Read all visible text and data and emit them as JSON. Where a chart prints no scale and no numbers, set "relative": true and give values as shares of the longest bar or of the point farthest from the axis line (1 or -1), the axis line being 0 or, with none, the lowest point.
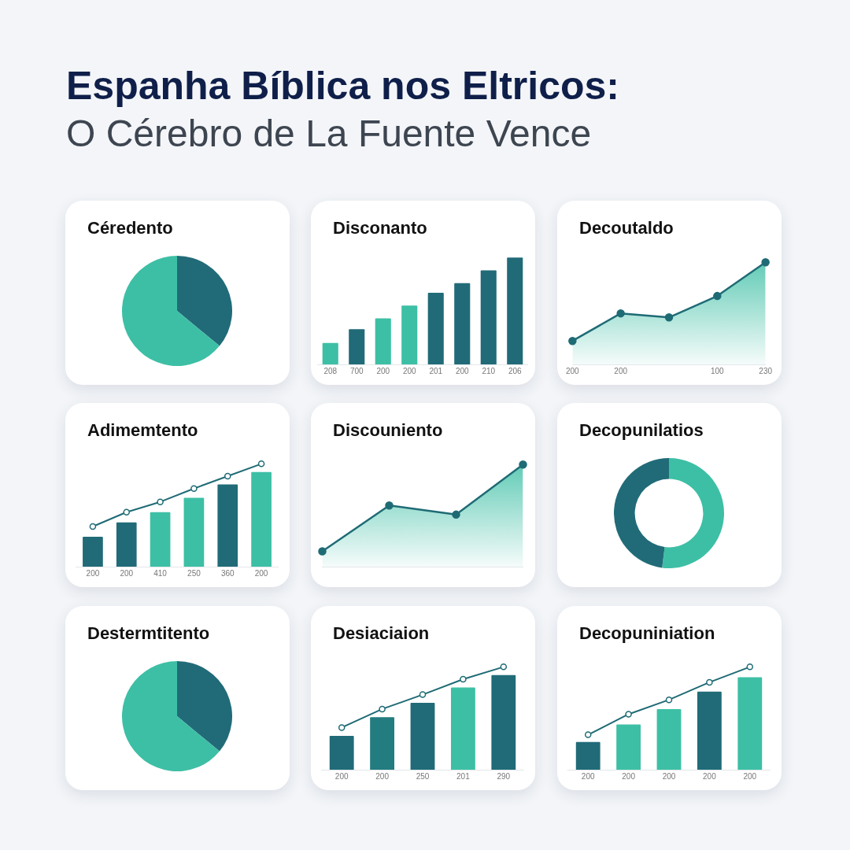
{
  "chart_data": [
    {
      "type": "other",
      "title": "Espanha Bíblica nos Eltricos:",
      "subtitle": "O Cérebro de La Fuente Vence"
    },
    {
      "type": "pie",
      "title": "Céredento",
      "categories": [
        null,
        null
      ],
      "values": [
        36,
        64
      ],
      "colors": [
        "#216b78",
        "#3dbfa5"
      ]
    },
    {
      "type": "bar",
      "title": "Disconanto",
      "relative": true,
      "categories": [
        "208",
        "700",
        "200",
        "200",
        "201",
        "200",
        "210",
        "206"
      ],
      "series": [
        {
          "colors": [
            "#3dbfa5",
            "#216b78",
            "#3dbfa5",
            "#3dbfa5",
            "#216b78",
            "#216b78",
            "#216b78",
            "#216b78"
          ],
          "values": [
            0.2,
            0.33,
            0.43,
            0.55,
            0.67,
            0.76,
            0.88,
            1
          ]
        }
      ],
      "legend": false
    },
    {
      "type": "area",
      "title": "Decoutaldo",
      "relative": true,
      "categories": [
        "200",
        "200",
        null,
        "100",
        "230"
      ],
      "series": [
        {
          "color": "#1f6b75",
          "values": [
            0.23,
            0.5,
            0.46,
            0.67,
            1
          ]
        }
      ],
      "legend": false,
      "marker": "circle"
    },
    {
      "type": "bar",
      "title": "Adimemtento",
      "relative": true,
      "categories": [
        "200",
        "200",
        "410",
        "250",
        "360",
        "200"
      ],
      "series": [
        {
          "type": "bar",
          "colors": [
            "#216b78",
            "#216b78",
            "#3dbfa5",
            "#3dbfa5",
            "#216b78",
            "#3dbfa5"
          ],
          "values": [
            0.29,
            0.43,
            0.53,
            0.67,
            0.8,
            0.92
          ]
        },
        {
          "type": "line",
          "color": "#1f6b75",
          "values": [
            0.39,
            0.53,
            0.63,
            0.76,
            0.88,
            1
          ]
        }
      ],
      "legend": false,
      "marker": "circle"
    },
    {
      "type": "area",
      "title": "Discouniento",
      "relative": true,
      "categories": [
        null,
        null,
        null,
        null
      ],
      "series": [
        {
          "color": "#1f6b75",
          "values": [
            0.15,
            0.6,
            0.51,
            1
          ]
        }
      ],
      "legend": false,
      "marker": "circle"
    },
    {
      "type": "donut",
      "title": "Decopunilatios",
      "categories": [
        null,
        null
      ],
      "values": [
        52,
        48
      ],
      "colors": [
        "#3dbfa5",
        "#216b78"
      ]
    },
    {
      "type": "pie",
      "title": "Destermtitento",
      "categories": [
        null,
        null
      ],
      "values": [
        36,
        64
      ],
      "colors": [
        "#216b78",
        "#3dbfa5"
      ]
    },
    {
      "type": "bar",
      "title": "Desiaciaion",
      "relative": true,
      "categories": [
        "200",
        "200",
        "250",
        "201",
        "290"
      ],
      "series": [
        {
          "type": "bar",
          "colors": [
            "#216b78",
            "#237c80",
            "#216b78",
            "#3dbfa5",
            "#216b78"
          ],
          "values": [
            0.33,
            0.51,
            0.65,
            0.8,
            0.92
          ]
        },
        {
          "type": "line",
          "color": "#1f6b75",
          "values": [
            0.41,
            0.59,
            0.73,
            0.88,
            1
          ]
        }
      ],
      "legend": false,
      "marker": "circle"
    },
    {
      "type": "bar",
      "title": "Decopuniniation",
      "relative": true,
      "categories": [
        "200",
        "200",
        "200",
        "200",
        "200"
      ],
      "series": [
        {
          "type": "bar",
          "colors": [
            "#216b78",
            "#3dbfa5",
            "#3dbfa5",
            "#216b78",
            "#3dbfa5"
          ],
          "values": [
            0.27,
            0.44,
            0.59,
            0.76,
            0.9
          ]
        },
        {
          "type": "line",
          "color": "#1f6b75",
          "values": [
            0.34,
            0.54,
            0.68,
            0.85,
            1
          ]
        }
      ],
      "legend": false,
      "marker": "circle"
    }
  ]
}
